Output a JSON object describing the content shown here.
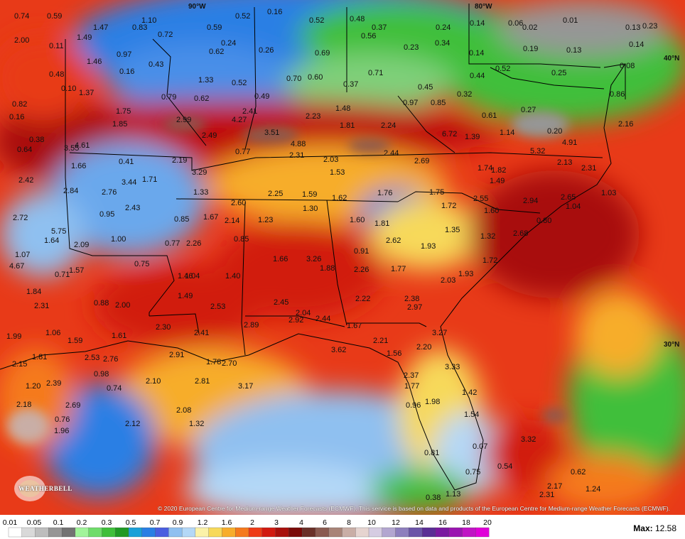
{
  "map": {
    "lat_lon_labels": [
      "90°W",
      "80°W",
      "40°N",
      "30°N"
    ],
    "values": [
      [
        "0.74",
        1
      ],
      [
        "0.59",
        1
      ],
      [
        "1.10",
        1
      ],
      [
        "0.52",
        1
      ],
      [
        "0.16",
        1
      ],
      [
        "0.52",
        1
      ],
      [
        "0.48",
        1
      ],
      [
        "0.14",
        1
      ],
      [
        "0.06",
        1
      ],
      [
        "0.02",
        1
      ],
      [
        "0.01",
        1
      ],
      [
        "0.13",
        1
      ],
      [
        "0.23",
        1
      ],
      [
        "2.00",
        1
      ],
      [
        "1.47",
        1
      ],
      [
        "0.83",
        1
      ],
      [
        "0.72",
        1
      ],
      [
        "0.59",
        1
      ],
      [
        "0.24",
        1
      ],
      [
        "0.37",
        1
      ],
      [
        "0.24",
        1
      ],
      [
        "0.14",
        1
      ],
      [
        "0.11",
        1
      ],
      [
        "1.49",
        1
      ],
      [
        "1.46",
        1
      ],
      [
        "0.97",
        1
      ],
      [
        "0.62",
        1
      ],
      [
        "0.26",
        1
      ],
      [
        "0.69",
        1
      ],
      [
        "0.56",
        1
      ],
      [
        "0.23",
        1
      ],
      [
        "0.34",
        1
      ],
      [
        "0.14",
        1
      ],
      [
        "0.19",
        1
      ],
      [
        "0.13",
        1
      ],
      [
        "0.08",
        1
      ],
      [
        "0.16",
        1
      ],
      [
        "0.43",
        1
      ],
      [
        "0.48",
        1
      ],
      [
        "1.33",
        1
      ],
      [
        "0.52",
        1
      ],
      [
        "0.70",
        1
      ],
      [
        "0.60",
        1
      ],
      [
        "0.71",
        1
      ],
      [
        "0.37",
        1
      ],
      [
        "0.44",
        1
      ],
      [
        "0.52",
        1
      ],
      [
        "0.25",
        1
      ],
      [
        "0.10",
        1
      ],
      [
        "1.37",
        1
      ],
      [
        "0.79",
        1
      ],
      [
        "0.62",
        1
      ],
      [
        "0.49",
        1
      ],
      [
        "0.45",
        1
      ],
      [
        "0.32",
        1
      ],
      [
        "0.97",
        1
      ],
      [
        "0.85",
        1
      ],
      [
        "0.86",
        1
      ],
      [
        "0.82",
        1
      ],
      [
        "1.75",
        1
      ],
      [
        "2.41",
        1
      ],
      [
        "1.48",
        1
      ],
      [
        "0.61",
        1
      ],
      [
        "0.27",
        1
      ],
      [
        "0.16",
        1
      ],
      [
        "1.85",
        1
      ],
      [
        "2.99",
        1
      ],
      [
        "4.27",
        1
      ],
      [
        "2.23",
        1
      ],
      [
        "1.81",
        1
      ],
      [
        "2.24",
        1
      ],
      [
        "2.16",
        1
      ],
      [
        "0.38",
        1
      ],
      [
        "2.49",
        1
      ],
      [
        "3.51",
        1
      ],
      [
        "6.72",
        1
      ],
      [
        "1.39",
        1
      ],
      [
        "1.14",
        1
      ],
      [
        "0.20",
        1
      ],
      [
        "0.64",
        1
      ],
      [
        "3.55",
        1
      ],
      [
        "4.61",
        1
      ],
      [
        "4.88",
        1
      ],
      [
        "4.91",
        1
      ],
      [
        "0.77",
        1
      ],
      [
        "2.31",
        1
      ],
      [
        "2.44",
        1
      ],
      [
        "5.32",
        1
      ],
      [
        "0.41",
        1
      ],
      [
        "2.19",
        1
      ],
      [
        "2.03",
        1
      ],
      [
        "2.69",
        1
      ],
      [
        "2.13",
        1
      ],
      [
        "1.66",
        1
      ],
      [
        "3.29",
        1
      ],
      [
        "1.53",
        1
      ],
      [
        "1.74",
        1
      ],
      [
        "1.82",
        1
      ],
      [
        "2.31",
        1
      ],
      [
        "2.42",
        1
      ],
      [
        "3.44",
        1
      ],
      [
        "1.71",
        1
      ],
      [
        "1.49",
        1
      ],
      [
        "2.84",
        1
      ],
      [
        "2.76",
        1
      ],
      [
        "1.33",
        1
      ],
      [
        "2.25",
        1
      ],
      [
        "1.59",
        1
      ],
      [
        "1.62",
        1
      ],
      [
        "1.76",
        1
      ],
      [
        "1.75",
        1
      ],
      [
        "1.03",
        1
      ],
      [
        "2.60",
        1
      ],
      [
        "2.55",
        1
      ],
      [
        "2.94",
        1
      ],
      [
        "2.65",
        1
      ],
      [
        "2.43",
        1
      ],
      [
        "1.30",
        1
      ],
      [
        "1.72",
        1
      ],
      [
        "1.04",
        1
      ],
      [
        "2.72",
        1
      ],
      [
        "0.95",
        1
      ],
      [
        "0.85",
        1
      ],
      [
        "1.67",
        1
      ],
      [
        "2.14",
        1
      ],
      [
        "1.23",
        1
      ],
      [
        "1.60",
        1
      ],
      [
        "1.60",
        1
      ],
      [
        "1.81",
        1
      ],
      [
        "0.80",
        1
      ],
      [
        "5.75",
        1
      ],
      [
        "1.35",
        1
      ],
      [
        "1.64",
        1
      ],
      [
        "1.00",
        1
      ],
      [
        "0.85",
        1
      ],
      [
        "2.62",
        1
      ],
      [
        "1.32",
        1
      ],
      [
        "2.68",
        1
      ],
      [
        "2.09",
        1
      ],
      [
        "0.77",
        1
      ],
      [
        "2.26",
        1
      ],
      [
        "1.93",
        1
      ],
      [
        "1.07",
        1
      ],
      [
        "0.91",
        1
      ],
      [
        "1.66",
        1
      ],
      [
        "3.26",
        1
      ],
      [
        "1.72",
        1
      ],
      [
        "4.67",
        1
      ],
      [
        "0.75",
        1
      ],
      [
        "0.71",
        1
      ],
      [
        "1.57",
        1
      ],
      [
        "1.88",
        1
      ],
      [
        "2.26",
        1
      ],
      [
        "1.77",
        1
      ],
      [
        "1.46",
        1
      ],
      [
        "1.04",
        1
      ],
      [
        "1.40",
        1
      ],
      [
        "2.03",
        1
      ],
      [
        "1.93",
        1
      ],
      [
        "1.84",
        1
      ],
      [
        "1.49",
        1
      ],
      [
        "2.22",
        1
      ],
      [
        "2.38",
        1
      ],
      [
        "2.31",
        1
      ],
      [
        "0.88",
        1
      ],
      [
        "2.00",
        1
      ],
      [
        "2.53",
        1
      ],
      [
        "2.45",
        1
      ],
      [
        "2.97",
        1
      ],
      [
        "2.04",
        1
      ],
      [
        "2.92",
        1
      ],
      [
        "2.44",
        1
      ],
      [
        "2.30",
        1
      ],
      [
        "2.89",
        1
      ],
      [
        "1.67",
        1
      ],
      [
        "1.99",
        1
      ],
      [
        "1.06",
        1
      ],
      [
        "1.61",
        1
      ],
      [
        "2.41",
        1
      ],
      [
        "3.27",
        1
      ],
      [
        "1.59",
        1
      ],
      [
        "2.21",
        1
      ],
      [
        "2.20",
        1
      ],
      [
        "1.81",
        1
      ],
      [
        "2.53",
        1
      ],
      [
        "2.76",
        1
      ],
      [
        "2.91",
        1
      ],
      [
        "3.62",
        1
      ],
      [
        "1.56",
        1
      ],
      [
        "2.15",
        1
      ],
      [
        "1.78",
        1
      ],
      [
        "2.70",
        1
      ],
      [
        "3.33",
        1
      ],
      [
        "0.98",
        1
      ],
      [
        "2.37",
        1
      ],
      [
        "1.20",
        1
      ],
      [
        "2.39",
        1
      ],
      [
        "2.10",
        1
      ],
      [
        "2.81",
        1
      ],
      [
        "3.17",
        1
      ],
      [
        "1.77",
        1
      ],
      [
        "1.42",
        1
      ],
      [
        "0.74",
        1
      ],
      [
        "2.18",
        1
      ],
      [
        "2.69",
        1
      ],
      [
        "2.08",
        1
      ],
      [
        "1.98",
        1
      ],
      [
        "0.96",
        1
      ],
      [
        "1.54",
        1
      ],
      [
        "0.76",
        1
      ],
      [
        "2.12",
        1
      ],
      [
        "1.32",
        1
      ],
      [
        "1.96",
        1
      ],
      [
        "3.32",
        1
      ],
      [
        "0.07",
        1
      ],
      [
        "0.81",
        1
      ],
      [
        "0.54",
        1
      ],
      [
        "0.75",
        1
      ],
      [
        "0.62",
        1
      ],
      [
        "2.17",
        1
      ],
      [
        "1.24",
        1
      ],
      [
        "2.31",
        1
      ],
      [
        "1.13",
        1
      ],
      [
        "0.38",
        1
      ],
      [
        "0.41",
        1
      ]
    ],
    "copyright": "© 2020 European Centre for Medium-range Weather Forecasts (ECMWF). This service is based on data and products of the European Centre for Medium-range Weather Forecasts (ECMWF).",
    "logo_text": "WEATHERBELL"
  },
  "legend": {
    "ticks": [
      "0.01",
      "0.05",
      "0.1",
      "0.2",
      "0.3",
      "0.5",
      "0.7",
      "0.9",
      "1.2",
      "1.6",
      "2",
      "3",
      "4",
      "6",
      "8",
      "10",
      "12",
      "14",
      "16",
      "18",
      "20"
    ],
    "colors": [
      "#ffffff",
      "#d9d9d9",
      "#bdbdbd",
      "#969696",
      "#737373",
      "#a1f49a",
      "#6fdc6a",
      "#3fbf3a",
      "#1f9a24",
      "#1aa0d8",
      "#2a7fe4",
      "#4a5ee0",
      "#8fc0f0",
      "#b4d8f7",
      "#fbf2a8",
      "#f7d95a",
      "#f7ad2c",
      "#f57a1d",
      "#ee3b16",
      "#d11a10",
      "#a8100c",
      "#7a0a08",
      "#6a3028",
      "#8a5a50",
      "#a88478",
      "#c9aea6",
      "#e6d4d0",
      "#d6cce2",
      "#b3a6d0",
      "#8e7fbd",
      "#6b55a8",
      "#5a2e95",
      "#7a1aa0",
      "#9a14b0",
      "#c014c4",
      "#e000d8"
    ],
    "max_label": "Max:",
    "max_value": "12.58"
  }
}
